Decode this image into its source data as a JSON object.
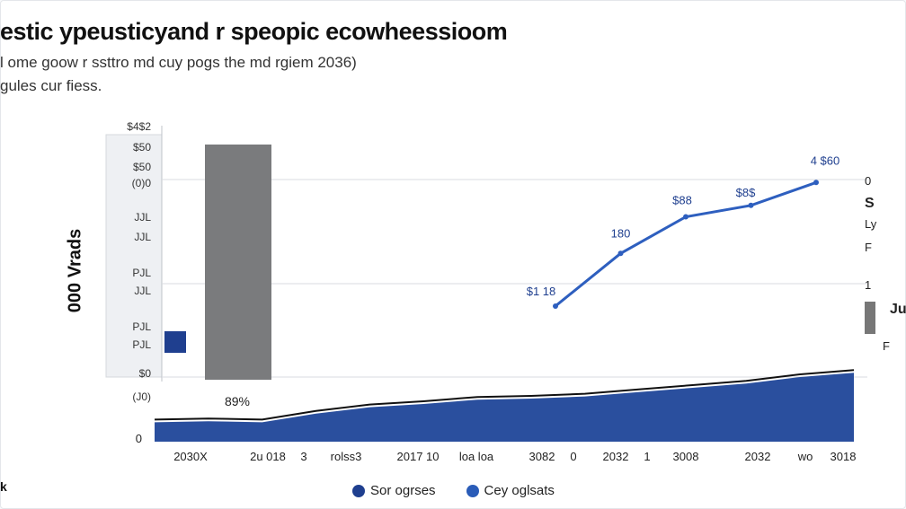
{
  "title": "estic ypeusticyand r speopic ecowheessioom",
  "subtitle": "l ome goow r ssttro md cuy pogs the md rgiem 2036)",
  "subtitle2": "gules cur fiess.",
  "ylabel": "000 Vrads",
  "corner_mark": "k",
  "colors": {
    "dark_blue": "#1f3f8f",
    "line_blue": "#2e5fbf",
    "gray_bar": "#7a7b7d",
    "area_blue": "#2a4f9e",
    "trend_line": "#111111",
    "grid": "#d9dbe0"
  },
  "legend": [
    {
      "label": "Sor ogrses",
      "color": "#1f3f8f"
    },
    {
      "label": "Cey oglsats",
      "color": "#2a5cb8"
    }
  ],
  "right_panel": {
    "row1": "0",
    "row2": "S",
    "row3": "Ly",
    "row4": "F",
    "row5": "1",
    "row6": "Ju",
    "row7": "F"
  },
  "chart_data": {
    "type": "bar",
    "title": "estic ypeusticyand r speopic ecowheessioom",
    "ylabel": "000 Vrads",
    "ytick_labels": [
      "$4$2",
      "$50",
      "$50",
      "(0)0",
      "JJL",
      "JJL",
      "PJL",
      "JJL",
      "PJL",
      "PJL",
      "$0",
      "(J0)"
    ],
    "x_tick_labels": [
      "2030X",
      "2u 018",
      "3",
      "rolss3",
      "2017 10",
      "loa loa",
      "3082",
      "0",
      "2032",
      "1",
      "3008",
      "2032",
      "wo",
      "3018"
    ],
    "bars": [
      {
        "name": "small-blue-bar",
        "value": 0.9
      },
      {
        "name": "gray-bar",
        "value": 9.2,
        "label": "89%"
      }
    ],
    "line_series": {
      "x": [
        0,
        1,
        2,
        3,
        4
      ],
      "y": [
        3.1,
        5.4,
        7.0,
        7.5,
        8.5
      ],
      "labels": [
        "$1 18",
        "180",
        "$88",
        "$8$",
        "4 $60"
      ]
    },
    "area_series": {
      "x": [
        0,
        1,
        2,
        3,
        4,
        5,
        6,
        7,
        8,
        9,
        10,
        11,
        12,
        13
      ],
      "y": [
        0.9,
        0.95,
        0.9,
        1.3,
        1.6,
        1.75,
        1.95,
        2.0,
        2.1,
        2.3,
        2.5,
        2.7,
        3.0,
        3.2
      ]
    },
    "zero_label": "0"
  }
}
